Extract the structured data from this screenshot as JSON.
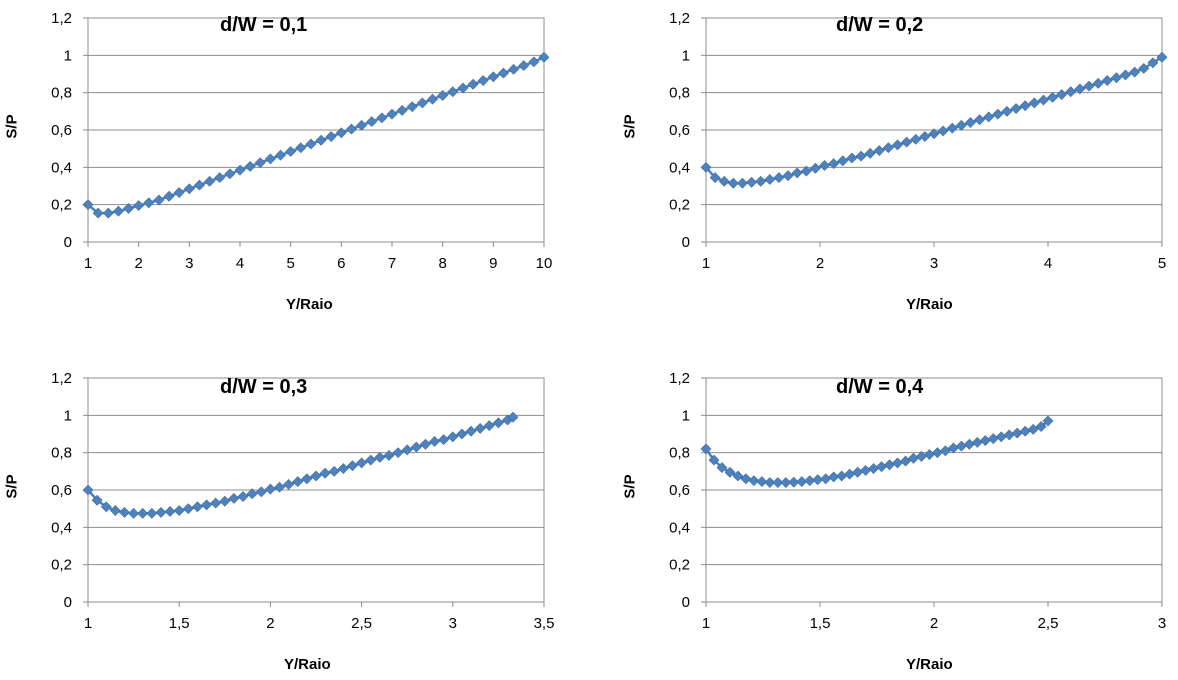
{
  "chart_data": [
    {
      "type": "scatter",
      "title": "d/W = 0,1",
      "xlabel": "Y/Raio",
      "ylabel": "S/P",
      "xlim": [
        1,
        10
      ],
      "ylim": [
        0,
        1.2
      ],
      "xticks": [
        "1",
        "2",
        "3",
        "4",
        "5",
        "6",
        "7",
        "8",
        "9",
        "10"
      ],
      "xtick_values": [
        1,
        2,
        3,
        4,
        5,
        6,
        7,
        8,
        9,
        10
      ],
      "yticks": [
        "0",
        "0,2",
        "0,4",
        "0,6",
        "0,8",
        "1",
        "1,2"
      ],
      "ytick_values": [
        0,
        0.2,
        0.4,
        0.6,
        0.8,
        1,
        1.2
      ],
      "grid": "horizontal",
      "series": [
        {
          "color": "#4F81BD",
          "x": [
            1.0,
            1.2,
            1.4,
            1.6,
            1.8,
            2.0,
            2.2,
            2.4,
            2.6,
            2.8,
            3.0,
            3.2,
            3.4,
            3.6,
            3.8,
            4.0,
            4.2,
            4.4,
            4.6,
            4.8,
            5.0,
            5.2,
            5.4,
            5.6,
            5.8,
            6.0,
            6.2,
            6.4,
            6.6,
            6.8,
            7.0,
            7.2,
            7.4,
            7.6,
            7.8,
            8.0,
            8.2,
            8.4,
            8.6,
            8.8,
            9.0,
            9.2,
            9.4,
            9.6,
            9.8,
            10.0
          ],
          "y": [
            0.2,
            0.155,
            0.155,
            0.165,
            0.18,
            0.195,
            0.21,
            0.225,
            0.245,
            0.265,
            0.285,
            0.305,
            0.325,
            0.345,
            0.365,
            0.385,
            0.405,
            0.425,
            0.445,
            0.465,
            0.485,
            0.505,
            0.525,
            0.545,
            0.565,
            0.585,
            0.605,
            0.625,
            0.645,
            0.665,
            0.685,
            0.705,
            0.725,
            0.745,
            0.765,
            0.785,
            0.805,
            0.825,
            0.845,
            0.865,
            0.885,
            0.905,
            0.925,
            0.945,
            0.965,
            0.99
          ]
        }
      ]
    },
    {
      "type": "scatter",
      "title": "d/W = 0,2",
      "xlabel": "Y/Raio",
      "ylabel": "S/P",
      "xlim": [
        1,
        5
      ],
      "ylim": [
        0,
        1.2
      ],
      "xticks": [
        "1",
        "2",
        "3",
        "4",
        "5"
      ],
      "xtick_values": [
        1,
        2,
        3,
        4,
        5
      ],
      "yticks": [
        "0",
        "0,2",
        "0,4",
        "0,6",
        "0,8",
        "1",
        "1,2"
      ],
      "ytick_values": [
        0,
        0.2,
        0.4,
        0.6,
        0.8,
        1,
        1.2
      ],
      "grid": "horizontal",
      "series": [
        {
          "color": "#4F81BD",
          "x": [
            1.0,
            1.08,
            1.16,
            1.24,
            1.32,
            1.4,
            1.48,
            1.56,
            1.64,
            1.72,
            1.8,
            1.88,
            1.96,
            2.04,
            2.12,
            2.2,
            2.28,
            2.36,
            2.44,
            2.52,
            2.6,
            2.68,
            2.76,
            2.84,
            2.92,
            3.0,
            3.08,
            3.16,
            3.24,
            3.32,
            3.4,
            3.48,
            3.56,
            3.64,
            3.72,
            3.8,
            3.88,
            3.96,
            4.04,
            4.12,
            4.2,
            4.28,
            4.36,
            4.44,
            4.52,
            4.6,
            4.68,
            4.76,
            4.84,
            4.92,
            5.0
          ],
          "y": [
            0.4,
            0.345,
            0.325,
            0.315,
            0.315,
            0.32,
            0.325,
            0.335,
            0.345,
            0.355,
            0.37,
            0.38,
            0.395,
            0.41,
            0.42,
            0.435,
            0.45,
            0.46,
            0.475,
            0.49,
            0.505,
            0.52,
            0.535,
            0.55,
            0.565,
            0.58,
            0.595,
            0.61,
            0.625,
            0.64,
            0.655,
            0.67,
            0.685,
            0.7,
            0.715,
            0.73,
            0.745,
            0.76,
            0.775,
            0.79,
            0.805,
            0.82,
            0.835,
            0.85,
            0.865,
            0.88,
            0.895,
            0.91,
            0.93,
            0.96,
            0.99
          ]
        }
      ]
    },
    {
      "type": "scatter",
      "title": "d/W = 0,3",
      "xlabel": "Y/Raio",
      "ylabel": "S/P",
      "xlim": [
        1,
        3.5
      ],
      "ylim": [
        0,
        1.2
      ],
      "xticks": [
        "1",
        "1,5",
        "2",
        "2,5",
        "3",
        "3,5"
      ],
      "xtick_values": [
        1,
        1.5,
        2,
        2.5,
        3,
        3.5
      ],
      "yticks": [
        "0",
        "0,2",
        "0,4",
        "0,6",
        "0,8",
        "1",
        "1,2"
      ],
      "ytick_values": [
        0,
        0.2,
        0.4,
        0.6,
        0.8,
        1,
        1.2
      ],
      "grid": "horizontal",
      "series": [
        {
          "color": "#4F81BD",
          "x": [
            1.0,
            1.05,
            1.1,
            1.15,
            1.2,
            1.25,
            1.3,
            1.35,
            1.4,
            1.45,
            1.5,
            1.55,
            1.6,
            1.65,
            1.7,
            1.75,
            1.8,
            1.85,
            1.9,
            1.95,
            2.0,
            2.05,
            2.1,
            2.15,
            2.2,
            2.25,
            2.3,
            2.35,
            2.4,
            2.45,
            2.5,
            2.55,
            2.6,
            2.65,
            2.7,
            2.75,
            2.8,
            2.85,
            2.9,
            2.95,
            3.0,
            3.05,
            3.1,
            3.15,
            3.2,
            3.25,
            3.3,
            3.33
          ],
          "y": [
            0.6,
            0.545,
            0.51,
            0.49,
            0.48,
            0.475,
            0.475,
            0.475,
            0.48,
            0.485,
            0.49,
            0.5,
            0.51,
            0.52,
            0.53,
            0.54,
            0.555,
            0.565,
            0.58,
            0.59,
            0.605,
            0.615,
            0.63,
            0.645,
            0.66,
            0.675,
            0.69,
            0.7,
            0.715,
            0.73,
            0.745,
            0.76,
            0.775,
            0.785,
            0.8,
            0.815,
            0.83,
            0.845,
            0.86,
            0.87,
            0.885,
            0.9,
            0.915,
            0.93,
            0.945,
            0.96,
            0.975,
            0.99
          ]
        }
      ]
    },
    {
      "type": "scatter",
      "title": "d/W = 0,4",
      "xlabel": "Y/Raio",
      "ylabel": "S/P",
      "xlim": [
        1,
        3
      ],
      "ylim": [
        0,
        1.2
      ],
      "xticks": [
        "1",
        "1,5",
        "2",
        "2,5",
        "3"
      ],
      "xtick_values": [
        1,
        1.5,
        2,
        2.5,
        3
      ],
      "yticks": [
        "0",
        "0,2",
        "0,4",
        "0,6",
        "0,8",
        "1",
        "1,2"
      ],
      "ytick_values": [
        0,
        0.2,
        0.4,
        0.6,
        0.8,
        1,
        1.2
      ],
      "grid": "horizontal",
      "series": [
        {
          "color": "#4F81BD",
          "x": [
            1.0,
            1.035,
            1.07,
            1.105,
            1.14,
            1.175,
            1.21,
            1.245,
            1.28,
            1.315,
            1.35,
            1.385,
            1.42,
            1.455,
            1.49,
            1.525,
            1.56,
            1.595,
            1.63,
            1.665,
            1.7,
            1.735,
            1.77,
            1.805,
            1.84,
            1.875,
            1.91,
            1.945,
            1.98,
            2.015,
            2.05,
            2.085,
            2.12,
            2.155,
            2.19,
            2.225,
            2.26,
            2.295,
            2.33,
            2.365,
            2.4,
            2.435,
            2.47,
            2.5
          ],
          "y": [
            0.82,
            0.76,
            0.72,
            0.695,
            0.675,
            0.66,
            0.65,
            0.645,
            0.64,
            0.64,
            0.64,
            0.642,
            0.645,
            0.65,
            0.655,
            0.66,
            0.67,
            0.675,
            0.685,
            0.695,
            0.705,
            0.715,
            0.725,
            0.735,
            0.745,
            0.755,
            0.77,
            0.78,
            0.79,
            0.8,
            0.81,
            0.825,
            0.835,
            0.845,
            0.855,
            0.865,
            0.875,
            0.885,
            0.895,
            0.905,
            0.915,
            0.925,
            0.94,
            0.97
          ]
        }
      ]
    }
  ]
}
